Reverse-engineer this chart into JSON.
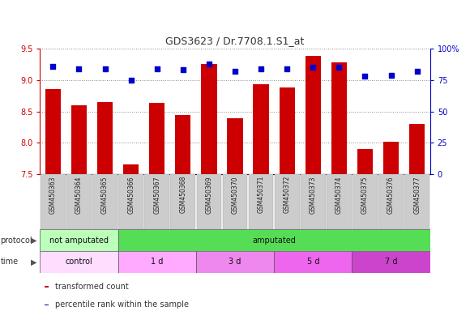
{
  "title": "GDS3623 / Dr.7708.1.S1_at",
  "samples": [
    "GSM450363",
    "GSM450364",
    "GSM450365",
    "GSM450366",
    "GSM450367",
    "GSM450368",
    "GSM450369",
    "GSM450370",
    "GSM450371",
    "GSM450372",
    "GSM450373",
    "GSM450374",
    "GSM450375",
    "GSM450376",
    "GSM450377"
  ],
  "bar_values": [
    8.85,
    8.6,
    8.65,
    7.65,
    8.63,
    8.44,
    9.25,
    8.39,
    8.93,
    8.88,
    9.38,
    9.28,
    7.9,
    8.02,
    8.3
  ],
  "dot_values": [
    86,
    84,
    84,
    75,
    84,
    83,
    88,
    82,
    84,
    84,
    85,
    85,
    78,
    79,
    82
  ],
  "ylim_left": [
    7.5,
    9.5
  ],
  "ylim_right": [
    0,
    100
  ],
  "yticks_left": [
    7.5,
    8.0,
    8.5,
    9.0,
    9.5
  ],
  "yticks_right": [
    0,
    25,
    50,
    75,
    100
  ],
  "ytick_labels_right": [
    "0",
    "25",
    "50",
    "75",
    "100%"
  ],
  "bar_color": "#cc0000",
  "dot_color": "#0000cc",
  "bar_width": 0.6,
  "protocol_groups": [
    {
      "label": "not amputated",
      "start": 0,
      "end": 3,
      "color": "#bbffbb"
    },
    {
      "label": "amputated",
      "start": 3,
      "end": 15,
      "color": "#55dd55"
    }
  ],
  "time_groups": [
    {
      "label": "control",
      "start": 0,
      "end": 3,
      "color": "#ffddff"
    },
    {
      "label": "1 d",
      "start": 3,
      "end": 6,
      "color": "#ffaaff"
    },
    {
      "label": "3 d",
      "start": 6,
      "end": 9,
      "color": "#ee88ee"
    },
    {
      "label": "5 d",
      "start": 9,
      "end": 12,
      "color": "#ee66ee"
    },
    {
      "label": "7 d",
      "start": 12,
      "end": 15,
      "color": "#cc44cc"
    }
  ],
  "legend_items": [
    {
      "label": "transformed count",
      "color": "#cc0000"
    },
    {
      "label": "percentile rank within the sample",
      "color": "#0000cc"
    }
  ],
  "grid_color": "#888888",
  "background_color": "#ffffff",
  "tick_label_color_left": "#cc0000",
  "tick_label_color_right": "#0000cc",
  "title_color": "#333333",
  "xtick_bg_color": "#cccccc",
  "xtick_border_color": "#aaaaaa"
}
